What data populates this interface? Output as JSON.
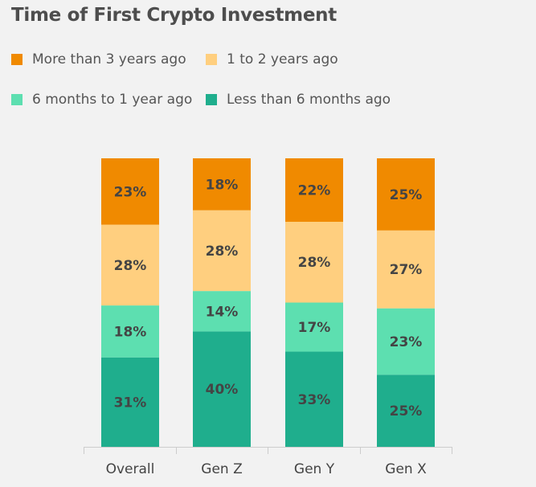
{
  "chart_data": {
    "type": "bar",
    "stacked": true,
    "title": "Time of First Crypto Investment",
    "xlabel": "",
    "ylabel": "",
    "categories": [
      "Overall",
      "Gen Z",
      "Gen Y",
      "Gen X"
    ],
    "series": [
      {
        "name": "Less than 6 months ago",
        "color": "#1fae8d",
        "values": [
          31,
          40,
          33,
          25
        ]
      },
      {
        "name": "6 months to 1 year ago",
        "color": "#5ddfb0",
        "values": [
          18,
          14,
          17,
          23
        ]
      },
      {
        "name": "1 to 2 years ago",
        "color": "#ffcf7f",
        "values": [
          28,
          28,
          28,
          27
        ]
      },
      {
        "name": "More than 3 years ago",
        "color": "#f08a00",
        "values": [
          23,
          18,
          22,
          25
        ]
      }
    ],
    "grid": false,
    "legend_position": "top-left"
  }
}
